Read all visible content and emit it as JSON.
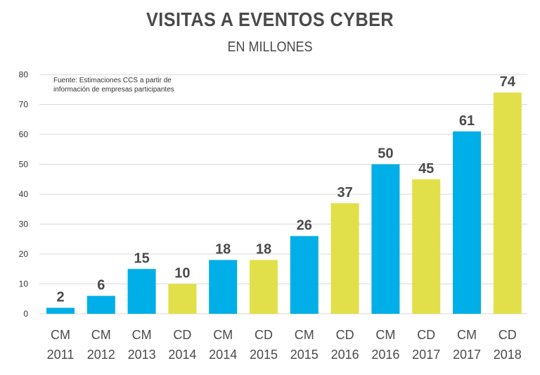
{
  "chart_data": {
    "type": "bar",
    "title": "VISITAS A EVENTOS CYBER",
    "subtitle": "EN MILLONES",
    "source_note": "Fuente: Estimaciones CCS a partir de\ninformación de empresas participantes",
    "categories": [
      {
        "event": "CM",
        "year": "2011"
      },
      {
        "event": "CM",
        "year": "2012"
      },
      {
        "event": "CM",
        "year": "2013"
      },
      {
        "event": "CD",
        "year": "2014"
      },
      {
        "event": "CM",
        "year": "2014"
      },
      {
        "event": "CD",
        "year": "2015"
      },
      {
        "event": "CM",
        "year": "2015"
      },
      {
        "event": "CD",
        "year": "2016"
      },
      {
        "event": "CM",
        "year": "2016"
      },
      {
        "event": "CD",
        "year": "2017"
      },
      {
        "event": "CM",
        "year": "2017"
      },
      {
        "event": "CD",
        "year": "2018"
      }
    ],
    "values": [
      2,
      6,
      15,
      10,
      18,
      18,
      26,
      37,
      50,
      45,
      61,
      74
    ],
    "ylim": [
      0,
      80
    ],
    "yticks": [
      0,
      10,
      20,
      30,
      40,
      50,
      60,
      70,
      80
    ],
    "grid": true,
    "colors": {
      "CM": "#00aee8",
      "CD": "#e2e04a"
    }
  }
}
